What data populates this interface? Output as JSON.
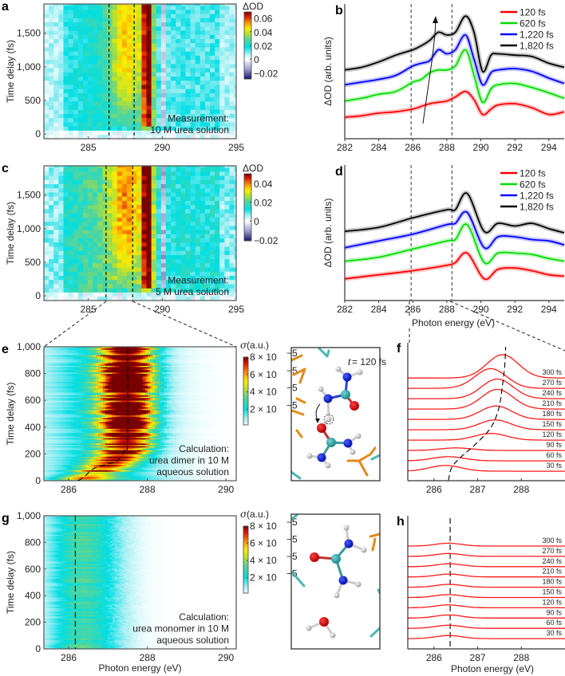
{
  "chart_data": [
    {
      "panel_label": "a",
      "type": "heatmap",
      "title": "",
      "xlabel": "",
      "ylabel": "Time delay (fs)",
      "xlim": [
        282,
        295
      ],
      "ylim": [
        -70,
        1935
      ],
      "xticks": [
        285,
        290,
        295
      ],
      "xtick_labels": [
        "285",
        "290",
        "295"
      ],
      "yticks": [
        0,
        500,
        1000,
        1500
      ],
      "ytick_labels": [
        "0",
        "500",
        "1,000",
        "1,500"
      ],
      "dashed_lines_eV": [
        286.4,
        288.1
      ],
      "annotation": [
        "Measurement:",
        "10 M urea solution"
      ],
      "peak_scale": 1.0,
      "colorbar": {
        "label": "ΔOD",
        "range": [
          -0.029,
          0.069
        ],
        "ticks": [
          0.06,
          0.04,
          0.02,
          0,
          -0.02
        ],
        "tick_labels": [
          "0.06",
          "0.04",
          "0.02",
          "0",
          "−0.02"
        ]
      }
    },
    {
      "panel_label": "b",
      "type": "line",
      "title": "",
      "xlabel": "",
      "ylabel": "ΔOD (arb. units)",
      "xlim": [
        282,
        294.9
      ],
      "ylim": [
        0,
        10
      ],
      "xticks": [
        282,
        284,
        286,
        288,
        290,
        292,
        294
      ],
      "xtick_labels": [
        "282",
        "284",
        "286",
        "288",
        "290",
        "292",
        "294"
      ],
      "dashed_lines_eV": [
        285.9,
        288.3
      ],
      "legend": "top-right",
      "x": [
        282,
        283,
        284,
        285,
        286,
        286.5,
        287,
        287.5,
        288,
        288.5,
        289.1,
        289.6,
        290.1,
        290.6,
        291,
        292,
        293,
        294,
        295
      ],
      "series": [
        {
          "name": "120 fs",
          "color": "#ff0000",
          "values": [
            1.6,
            1.7,
            1.9,
            2.0,
            2.2,
            2.4,
            2.6,
            2.7,
            2.8,
            3.1,
            3.5,
            2.9,
            1.8,
            2.2,
            2.5,
            2.6,
            2.3,
            1.8,
            2.0
          ]
        },
        {
          "name": "620 fs",
          "color": "#00dd00",
          "values": [
            2.8,
            3.0,
            3.3,
            3.5,
            4.2,
            4.4,
            4.9,
            5.1,
            5.1,
            5.4,
            6.6,
            4.7,
            2.7,
            3.7,
            4.0,
            4.1,
            3.8,
            3.4,
            3.0
          ]
        },
        {
          "name": "1,220 fs",
          "color": "#0000ff",
          "values": [
            4.0,
            4.2,
            4.4,
            4.7,
            5.4,
            5.6,
            5.8,
            6.6,
            6.3,
            6.6,
            7.7,
            5.9,
            4.0,
            4.9,
            5.1,
            5.2,
            5.0,
            4.5,
            4.1
          ]
        },
        {
          "name": "1,820 fs",
          "color": "#000000",
          "values": [
            5.1,
            5.3,
            5.7,
            6.2,
            6.6,
            6.9,
            7.3,
            7.9,
            7.7,
            7.9,
            9.1,
            7.9,
            5.0,
            6.2,
            6.3,
            6.2,
            6.1,
            5.6,
            5.3
          ]
        }
      ]
    },
    {
      "panel_label": "c",
      "type": "heatmap",
      "title": "",
      "xlabel": "",
      "ylabel": "Time delay (fs)",
      "xlim": [
        282,
        295
      ],
      "ylim": [
        -70,
        1935
      ],
      "xticks": [
        285,
        290,
        295
      ],
      "xtick_labels": [
        "285",
        "290",
        "295"
      ],
      "yticks": [
        0,
        500,
        1000,
        1500
      ],
      "ytick_labels": [
        "0",
        "500",
        "1,000",
        "1,500"
      ],
      "dashed_lines_eV": [
        286.2,
        288.0
      ],
      "annotation": [
        "Measurement:",
        "5 M urea solution"
      ],
      "peak_scale": 0.72,
      "colorbar": {
        "label": "ΔOD",
        "range": [
          -0.021,
          0.05
        ],
        "ticks": [
          0.04,
          0.02,
          0,
          -0.02
        ],
        "tick_labels": [
          "0.04",
          "0.02",
          "0",
          "−0.02"
        ]
      }
    },
    {
      "panel_label": "d",
      "type": "line",
      "title": "",
      "xlabel": "Photon energy (eV)",
      "ylabel": "ΔOD (arb. units)",
      "xlim": [
        282,
        294.9
      ],
      "ylim": [
        0,
        10
      ],
      "xticks": [
        282,
        284,
        286,
        288,
        290,
        292,
        294
      ],
      "xtick_labels": [
        "282",
        "284",
        "286",
        "288",
        "290",
        "292",
        "294"
      ],
      "dashed_lines_eV": [
        285.9,
        288.3
      ],
      "legend": "top-right",
      "x": [
        282,
        284,
        286,
        288,
        288.5,
        289.2,
        290.2,
        291,
        292,
        293,
        294,
        295
      ],
      "series": [
        {
          "name": "120 fs",
          "color": "#ff0000",
          "values": [
            1.6,
            1.9,
            2.2,
            2.6,
            2.8,
            3.5,
            1.6,
            2.3,
            2.4,
            2.2,
            1.9,
            1.8
          ]
        },
        {
          "name": "620 fs",
          "color": "#00dd00",
          "values": [
            2.9,
            3.2,
            3.8,
            4.4,
            4.5,
            5.6,
            2.8,
            3.5,
            3.5,
            3.4,
            3.1,
            2.9
          ]
        },
        {
          "name": "1,220 fs",
          "color": "#0000ff",
          "values": [
            3.9,
            4.4,
            4.9,
            5.6,
            5.7,
            6.5,
            3.9,
            4.7,
            4.7,
            4.5,
            4.4,
            4.1
          ]
        },
        {
          "name": "1,820 fs",
          "color": "#000000",
          "values": [
            5.1,
            5.4,
            6.1,
            6.7,
            6.7,
            7.9,
            5.1,
            5.7,
            5.5,
            5.7,
            5.3,
            5.0
          ]
        }
      ]
    },
    {
      "panel_label": "e",
      "type": "heatmap",
      "title": "",
      "xlabel": "",
      "ylabel": "Time delay (fs)",
      "xlim": [
        285.37,
        290.26
      ],
      "ylim": [
        0,
        1000
      ],
      "xticks": [
        286,
        288,
        290
      ],
      "xtick_labels": [
        "286",
        "288",
        "290"
      ],
      "yticks": [
        0,
        200,
        400,
        600,
        800,
        1000
      ],
      "ytick_labels": [
        "0",
        "200",
        "400",
        "600",
        "800",
        "1,000"
      ],
      "dashed_path": [
        [
          286.24,
          0
        ],
        [
          286.4,
          30
        ],
        [
          286.63,
          90
        ],
        [
          287.0,
          125
        ],
        [
          287.24,
          150
        ],
        [
          287.44,
          238
        ],
        [
          287.5,
          300
        ],
        [
          287.5,
          1000
        ]
      ],
      "annotation": [
        "Calculation:",
        "urea dimer in 10 M",
        "aqueous solution"
      ],
      "colorbar": {
        "label_symbol": "σ",
        "label_unit": " (a.u.)",
        "range": [
          2e-06,
          8e-05
        ],
        "ticks": [
          8e-05,
          6e-05,
          4e-05,
          2e-05
        ],
        "tick_labels": [
          "8 × 10",
          "6 × 10",
          "4 × 10",
          "2 × 10"
        ],
        "tick_exponent": "−5"
      },
      "inset": {
        "time_symbol": "t",
        "time_value": " = 120 fs"
      }
    },
    {
      "panel_label": "f",
      "type": "line",
      "title": "",
      "xlabel": "",
      "ylabel": "",
      "xlim": [
        285.4,
        289.0
      ],
      "ylim": [
        -0.92,
        12.4
      ],
      "xticks": [
        286,
        287,
        288
      ],
      "xtick_labels": [
        "286",
        "287",
        "288"
      ],
      "dashed_path": [
        [
          286.33,
          -0.92
        ],
        [
          286.4,
          0.3
        ],
        [
          286.6,
          1.3
        ],
        [
          286.95,
          2.6
        ],
        [
          287.3,
          4.2
        ],
        [
          287.48,
          6.0
        ],
        [
          287.56,
          8.0
        ],
        [
          287.62,
          10.2
        ],
        [
          287.64,
          12.0
        ]
      ],
      "series": [
        {
          "name": "30 fs",
          "offset": 0,
          "peak_eV": 286.26,
          "amplitude": 0.55
        },
        {
          "name": "60 fs",
          "offset": 1,
          "peak_eV": 286.33,
          "amplitude": 0.4
        },
        {
          "name": "90 fs",
          "offset": 2,
          "peak_eV": 286.5,
          "amplitude": 0.25
        },
        {
          "name": "120 fs",
          "offset": 3,
          "peak_eV": 287.3,
          "amplitude": 0.65
        },
        {
          "name": "150 fs",
          "offset": 4,
          "peak_eV": 287.4,
          "amplitude": 0.95
        },
        {
          "name": "180 fs",
          "offset": 5,
          "peak_eV": 287.42,
          "amplitude": 1.3
        },
        {
          "name": "210 fs",
          "offset": 6,
          "peak_eV": 287.45,
          "amplitude": 1.9
        },
        {
          "name": "240 fs",
          "offset": 7,
          "peak_eV": 287.45,
          "amplitude": 1.9
        },
        {
          "name": "270 fs",
          "offset": 8,
          "peak_eV": 287.3,
          "amplitude": 1.9
        },
        {
          "name": "300 fs",
          "offset": 9,
          "peak_eV": 287.57,
          "amplitude": 2.25
        }
      ]
    },
    {
      "panel_label": "g",
      "type": "heatmap",
      "title": "",
      "xlabel": "Photon energy (eV)",
      "ylabel": "Time delay (fs)",
      "xlim": [
        285.37,
        290.26
      ],
      "ylim": [
        0,
        1000
      ],
      "xticks": [
        286,
        288,
        290
      ],
      "xtick_labels": [
        "286",
        "288",
        "290"
      ],
      "yticks": [
        0,
        200,
        400,
        600,
        800,
        1000
      ],
      "ytick_labels": [
        "0",
        "200",
        "400",
        "600",
        "800",
        "1,000"
      ],
      "dashed_lines_eV": [
        286.17
      ],
      "annotation": [
        "Calculation:",
        "urea monomer in 10 M",
        "aqueous solution"
      ],
      "colorbar": {
        "label_symbol": "σ",
        "label_unit": " (a.u.)",
        "range": [
          2e-06,
          8e-05
        ],
        "ticks": [
          8e-05,
          6e-05,
          4e-05,
          2e-05
        ],
        "tick_labels": [
          "8 × 10",
          "6 × 10",
          "4 × 10",
          "2 × 10"
        ],
        "tick_exponent": "−5"
      }
    },
    {
      "panel_label": "h",
      "type": "line",
      "title": "",
      "xlabel": "Photon energy (eV)",
      "ylabel": "",
      "xlim": [
        285.4,
        289.0
      ],
      "ylim": [
        -1.0,
        11.95
      ],
      "xticks": [
        286,
        287,
        288
      ],
      "xtick_labels": [
        "286",
        "287",
        "288"
      ],
      "dashed_lines_eV": [
        286.37
      ],
      "series": [
        {
          "name": "30 fs",
          "offset": 0,
          "peak_eV": 286.33,
          "amplitude": 0.3
        },
        {
          "name": "60 fs",
          "offset": 1,
          "peak_eV": 286.33,
          "amplitude": 0.3
        },
        {
          "name": "90 fs",
          "offset": 2,
          "peak_eV": 286.33,
          "amplitude": 0.3
        },
        {
          "name": "120 fs",
          "offset": 3,
          "peak_eV": 286.33,
          "amplitude": 0.28
        },
        {
          "name": "150 fs",
          "offset": 4,
          "peak_eV": 286.33,
          "amplitude": 0.28
        },
        {
          "name": "180 fs",
          "offset": 5,
          "peak_eV": 286.35,
          "amplitude": 0.28
        },
        {
          "name": "210 fs",
          "offset": 6,
          "peak_eV": 286.35,
          "amplitude": 0.28
        },
        {
          "name": "240 fs",
          "offset": 7,
          "peak_eV": 286.35,
          "amplitude": 0.28
        },
        {
          "name": "270 fs",
          "offset": 8,
          "peak_eV": 286.33,
          "amplitude": 0.28
        },
        {
          "name": "300 fs",
          "offset": 9,
          "peak_eV": 286.33,
          "amplitude": 0.28
        }
      ]
    }
  ]
}
